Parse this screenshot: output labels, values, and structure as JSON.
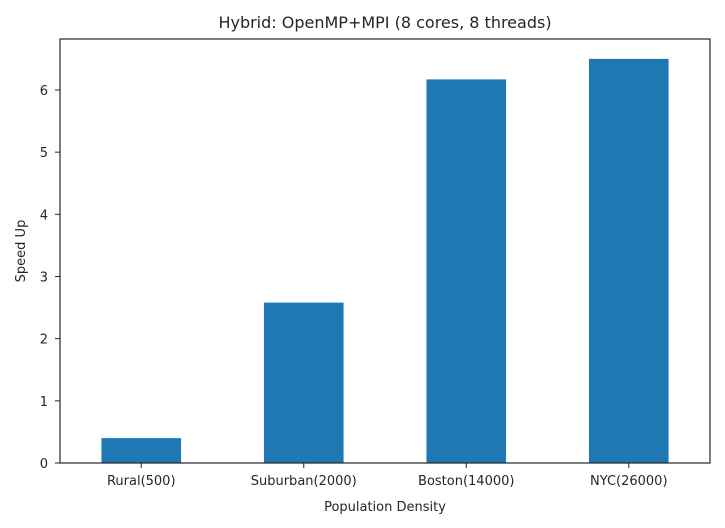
{
  "chart_data": {
    "type": "bar",
    "title": "Hybrid: OpenMP+MPI (8 cores, 8 threads)",
    "xlabel": "Population Density",
    "ylabel": "Speed Up",
    "categories": [
      "Rural(500)",
      "Suburban(2000)",
      "Boston(14000)",
      "NYC(26000)"
    ],
    "values": [
      0.4,
      2.58,
      6.17,
      6.5
    ],
    "ylim": [
      0,
      6.82
    ],
    "yticks": [
      0,
      1,
      2,
      3,
      4,
      5,
      6
    ],
    "bar_color": "#1f77b4",
    "grid": false,
    "legend": "none"
  }
}
